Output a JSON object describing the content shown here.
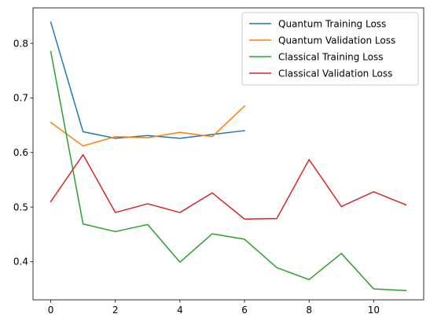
{
  "chart_data": {
    "type": "line",
    "title": "",
    "xlabel": "",
    "ylabel": "",
    "xlim": [
      -0.55,
      11.55
    ],
    "ylim": [
      0.33,
      0.865
    ],
    "xticks": [
      0,
      2,
      4,
      6,
      8,
      10
    ],
    "yticks": [
      0.4,
      0.5,
      0.6,
      0.7,
      0.8
    ],
    "grid": false,
    "legend_position": "top-right",
    "series": [
      {
        "name": "Quantum Training Loss",
        "color": "#1f77b4",
        "x": [
          0,
          1,
          2,
          3,
          4,
          5,
          6
        ],
        "y": [
          0.839,
          0.638,
          0.626,
          0.631,
          0.626,
          0.633,
          0.64
        ]
      },
      {
        "name": "Quantum Validation Loss",
        "color": "#ff7f0e",
        "x": [
          0,
          1,
          2,
          3,
          4,
          5,
          6
        ],
        "y": [
          0.655,
          0.612,
          0.629,
          0.627,
          0.637,
          0.629,
          0.685
        ]
      },
      {
        "name": "Classical Training Loss",
        "color": "#2ca02c",
        "x": [
          0,
          1,
          2,
          3,
          4,
          5,
          6,
          7,
          8,
          9,
          10,
          11
        ],
        "y": [
          0.785,
          0.469,
          0.455,
          0.468,
          0.399,
          0.451,
          0.441,
          0.389,
          0.367,
          0.415,
          0.35,
          0.347
        ]
      },
      {
        "name": "Classical Validation Loss",
        "color": "#d62728",
        "x": [
          0,
          1,
          2,
          3,
          4,
          5,
          6,
          7,
          8,
          9,
          10,
          11
        ],
        "y": [
          0.51,
          0.596,
          0.49,
          0.506,
          0.49,
          0.526,
          0.478,
          0.479,
          0.587,
          0.501,
          0.528,
          0.504
        ]
      }
    ]
  }
}
